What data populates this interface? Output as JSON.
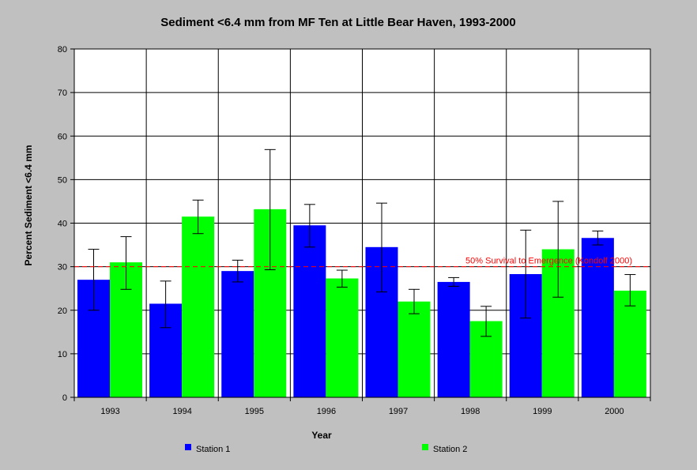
{
  "chart_data": {
    "type": "bar",
    "title": "Sediment <6.4 mm from MF Ten at Little Bear Haven, 1993-2000",
    "xlabel": "Year",
    "ylabel": "Percent Sediment <6.4 mm",
    "ylim": [
      0,
      80
    ],
    "yticks": [
      0,
      10,
      20,
      30,
      40,
      50,
      60,
      70,
      80
    ],
    "grid": true,
    "legend_position": "bottom",
    "categories": [
      "1993",
      "1994",
      "1995",
      "1996",
      "1997",
      "1998",
      "1999",
      "2000"
    ],
    "series": [
      {
        "name": "Station 1",
        "color": "#0000ff",
        "values": [
          27,
          21.5,
          29,
          39.5,
          34.5,
          26.5,
          28.3,
          36.6
        ],
        "error_low": [
          20,
          16,
          26.5,
          34.5,
          24.2,
          25.5,
          18.2,
          35
        ],
        "error_high": [
          34,
          26.7,
          31.5,
          44.3,
          44.6,
          27.5,
          38.4,
          38.2
        ]
      },
      {
        "name": "Station 2",
        "color": "#00ff00",
        "values": [
          31,
          41.5,
          43.2,
          27.3,
          22,
          17.5,
          34,
          24.5
        ],
        "error_low": [
          24.8,
          37.6,
          29.3,
          25.3,
          19.2,
          14,
          23,
          21
        ],
        "error_high": [
          36.9,
          45.3,
          56.9,
          29.2,
          24.8,
          20.9,
          45,
          28.2
        ]
      }
    ],
    "reference_line": {
      "value": 30,
      "label": "50% Survival to Emergence (Kondolf 2000)",
      "color": "#ff0000"
    }
  }
}
